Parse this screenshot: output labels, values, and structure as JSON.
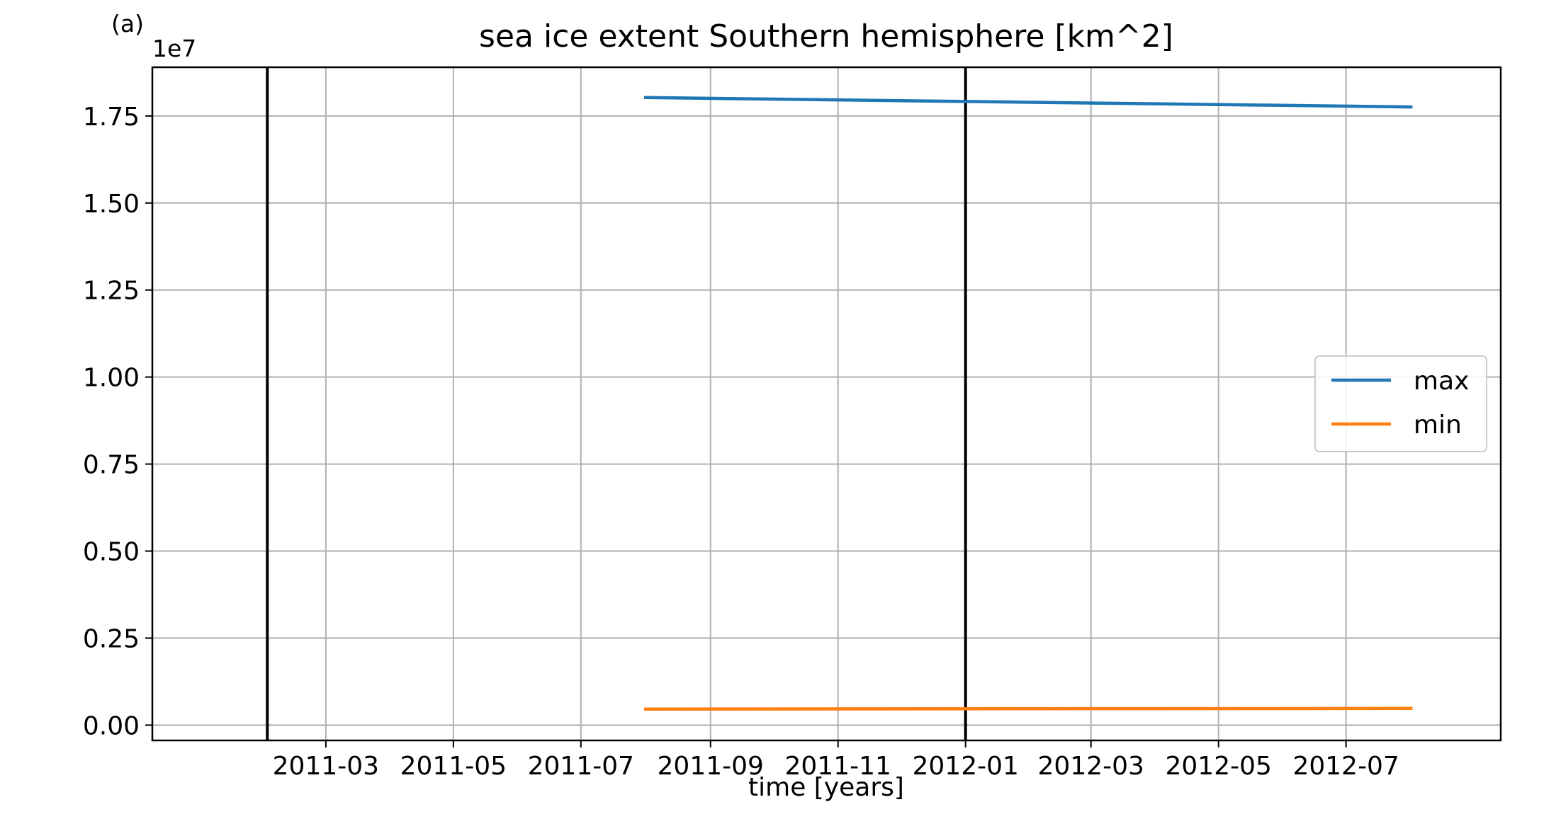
{
  "panel_label": "(a)",
  "chart_data": {
    "type": "line",
    "title": "sea ice extent Southern hemisphere [km^2]",
    "xlabel": "time [years]",
    "ylabel": "",
    "y_offset_label": "1e7",
    "x_tick_labels": [
      "2011-03",
      "2011-05",
      "2011-07",
      "2011-09",
      "2011-11",
      "2012-01",
      "2012-03",
      "2012-05",
      "2012-07"
    ],
    "x_tick_dates": [
      "2011-03-01",
      "2011-05-01",
      "2011-07-01",
      "2011-09-01",
      "2011-11-01",
      "2012-01-01",
      "2012-03-01",
      "2012-05-01",
      "2012-07-01"
    ],
    "xlim": [
      "2010-12-08",
      "2012-09-13"
    ],
    "y_tick_labels": [
      "0.00",
      "0.25",
      "0.50",
      "0.75",
      "1.00",
      "1.25",
      "1.50",
      "1.75"
    ],
    "y_tick_values": [
      0,
      2500000,
      5000000,
      7500000,
      10000000,
      12500000,
      15000000,
      17500000
    ],
    "ylim": [
      -440000,
      18900000
    ],
    "grid": true,
    "legend_position": "center-right",
    "vertical_lines": [
      {
        "x": "2011-02-01",
        "color": "#000000"
      },
      {
        "x": "2012-01-01",
        "color": "#000000"
      }
    ],
    "series": [
      {
        "name": "max",
        "color": "#1f77b4",
        "x": [
          "2011-08-01",
          "2012-08-01"
        ],
        "y": [
          18030000,
          17760000
        ]
      },
      {
        "name": "min",
        "color": "#ff7f0e",
        "x": [
          "2011-08-01",
          "2012-08-01"
        ],
        "y": [
          460000,
          480000
        ]
      }
    ]
  }
}
